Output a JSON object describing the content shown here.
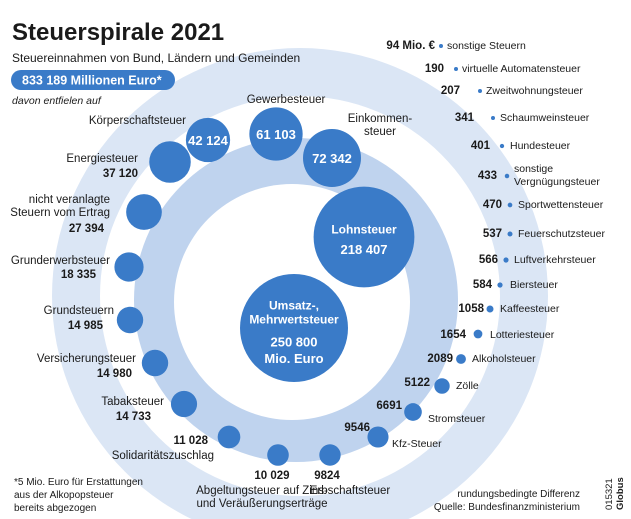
{
  "header": {
    "title": "Steuerspirale 2021",
    "subtitle": "Steuereinnahmen von Bund, Ländern und Gemeinden",
    "total": "833 189 Millionen Euro*",
    "note": "davon entfielen auf"
  },
  "footer": {
    "footnote": [
      "*5 Mio. Euro für Erstattungen",
      "aus der Alkopopsteuer",
      "bereits abgezogen"
    ],
    "rounding": "rundungsbedingte Differenz",
    "source": "Quelle: Bundesfinanzministerium",
    "brand_code": "015321",
    "brand_name": "Globus"
  },
  "colors": {
    "bubble": "#3a7bc8",
    "ring_outer": "#dbe6f5",
    "ring_inner": "#bfd3ee",
    "total_box": "#3a7bc8"
  },
  "chart_data": {
    "type": "bubble-spiral",
    "unit": "Mio. Euro",
    "items": [
      {
        "label": "Umsatz-, Mehrwertsteuer",
        "lines": [
          "Umsatz-,",
          "Mehrwertsteuer"
        ],
        "value": 250800,
        "display": "250 800",
        "unit_line": "Mio. Euro"
      },
      {
        "label": "Lohnsteuer",
        "lines": [
          "Lohnsteuer"
        ],
        "value": 218407,
        "display": "218 407"
      },
      {
        "label": "Einkommensteuer",
        "lines": [
          "Einkommen-",
          "steuer"
        ],
        "value": 72342,
        "display": "72 342"
      },
      {
        "label": "Gewerbesteuer",
        "lines": [
          "Gewerbesteuer"
        ],
        "value": 61103,
        "display": "61 103"
      },
      {
        "label": "Körperschaftsteuer",
        "lines": [
          "Körperschaftsteuer"
        ],
        "value": 42124,
        "display": "42 124"
      },
      {
        "label": "Energiesteuer",
        "lines": [
          "Energiesteuer"
        ],
        "value": 37120,
        "display": "37 120"
      },
      {
        "label": "nicht veranlagte Steuern vom Ertrag",
        "lines": [
          "nicht veranlagte",
          "Steuern vom Ertrag"
        ],
        "value": 27394,
        "display": "27 394"
      },
      {
        "label": "Grunderwerbsteuer",
        "lines": [
          "Grunderwerbsteuer"
        ],
        "value": 18335,
        "display": "18 335"
      },
      {
        "label": "Grundsteuern",
        "lines": [
          "Grundsteuern"
        ],
        "value": 14985,
        "display": "14 985"
      },
      {
        "label": "Versicherungsteuer",
        "lines": [
          "Versicherungsteuer"
        ],
        "value": 14980,
        "display": "14 980"
      },
      {
        "label": "Tabaksteuer",
        "lines": [
          "Tabaksteuer"
        ],
        "value": 14733,
        "display": "14 733"
      },
      {
        "label": "Solidaritätszuschlag",
        "lines": [
          "Solidaritätszuschlag"
        ],
        "value": 11028,
        "display": "11 028"
      },
      {
        "label": "Abgeltungsteuer auf Zins- und Veräußerungserträge",
        "lines": [
          "Abgeltungsteuer auf Zins-",
          "und Veräußerungserträge"
        ],
        "value": 10029,
        "display": "10 029"
      },
      {
        "label": "Erbschaftsteuer",
        "lines": [
          "Erbschaftsteuer"
        ],
        "value": 9824,
        "display": "9824"
      },
      {
        "label": "Kfz-Steuer",
        "lines": [
          "Kfz-Steuer"
        ],
        "value": 9546,
        "display": "9546"
      },
      {
        "label": "Stromsteuer",
        "lines": [
          "Stromsteuer"
        ],
        "value": 6691,
        "display": "6691"
      },
      {
        "label": "Zölle",
        "lines": [
          "Zölle"
        ],
        "value": 5122,
        "display": "5122"
      },
      {
        "label": "Alkoholsteuer",
        "lines": [
          "Alkoholsteuer"
        ],
        "value": 2089,
        "display": "2089"
      },
      {
        "label": "Lotteriesteuer",
        "lines": [
          "Lotteriesteuer"
        ],
        "value": 1654,
        "display": "1654"
      },
      {
        "label": "Kaffeesteuer",
        "lines": [
          "Kaffeesteuer"
        ],
        "value": 1058,
        "display": "1058"
      },
      {
        "label": "Biersteuer",
        "lines": [
          "Biersteuer"
        ],
        "value": 584,
        "display": "584"
      },
      {
        "label": "Luftverkehrsteuer",
        "lines": [
          "Luftverkehrsteuer"
        ],
        "value": 566,
        "display": "566"
      },
      {
        "label": "Feuerschutzsteuer",
        "lines": [
          "Feuerschutzsteuer"
        ],
        "value": 537,
        "display": "537"
      },
      {
        "label": "Sportwettensteuer",
        "lines": [
          "Sportwettensteuer"
        ],
        "value": 470,
        "display": "470"
      },
      {
        "label": "sonstige Vergnügungsteuer",
        "lines": [
          "sonstige",
          "Vergnügungsteuer"
        ],
        "value": 433,
        "display": "433"
      },
      {
        "label": "Hundesteuer",
        "lines": [
          "Hundesteuer"
        ],
        "value": 401,
        "display": "401"
      },
      {
        "label": "Schaumweinsteuer",
        "lines": [
          "Schaumweinsteuer"
        ],
        "value": 341,
        "display": "341"
      },
      {
        "label": "Zweitwohnungsteuer",
        "lines": [
          "Zweitwohnungsteuer"
        ],
        "value": 207,
        "display": "207"
      },
      {
        "label": "virtuelle Automatensteuer",
        "lines": [
          "virtuelle Automatensteuer"
        ],
        "value": 190,
        "display": "190"
      },
      {
        "label": "sonstige Steuern",
        "lines": [
          "sonstige Steuern"
        ],
        "value": 94,
        "display": "94 Mio. €"
      }
    ]
  }
}
